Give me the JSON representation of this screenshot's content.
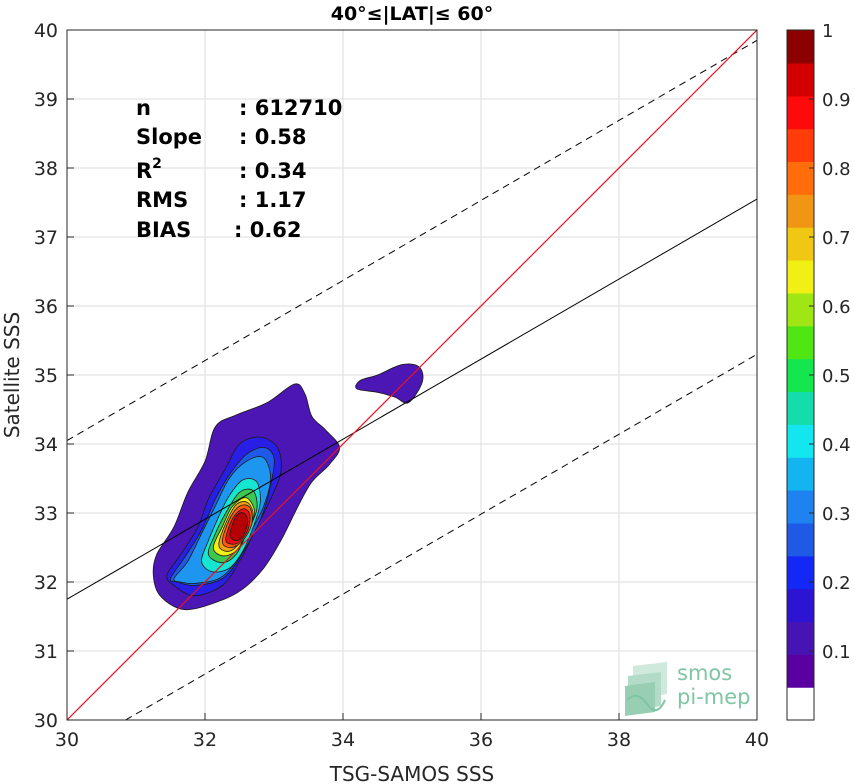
{
  "chart_data": {
    "type": "contour",
    "title": "40°≤|LAT|≤ 60°",
    "xlabel": "TSG-SAMOS SSS",
    "ylabel": "Satellite SSS",
    "xlim": [
      30,
      40
    ],
    "ylim": [
      30,
      40
    ],
    "xticks": [
      "30",
      "32",
      "34",
      "36",
      "38",
      "40"
    ],
    "yticks": [
      "30",
      "31",
      "32",
      "33",
      "34",
      "35",
      "36",
      "37",
      "38",
      "39",
      "40"
    ],
    "grid": true,
    "stats": [
      {
        "label": "n",
        "value": ": 612710"
      },
      {
        "label": "Slope",
        "value": ": 0.58"
      },
      {
        "label": "R",
        "sup": "2",
        "value": ": 0.34"
      },
      {
        "label": "RMS",
        "value": ": 1.17"
      },
      {
        "label": "BIAS",
        "value": ": 0.62"
      }
    ],
    "identity_line": {
      "color": "#e8141e",
      "x": [
        30,
        40
      ],
      "y": [
        30,
        40
      ]
    },
    "regression_line": {
      "x": [
        30,
        40
      ],
      "y": [
        31.75,
        37.55
      ]
    },
    "envelope_lines": [
      {
        "x": [
          30,
          40
        ],
        "y": [
          34.05,
          39.85
        ]
      },
      {
        "x": [
          30.85,
          40
        ],
        "y": [
          30,
          35.3
        ]
      }
    ],
    "contours": [
      {
        "level": 0.05,
        "color": "#4b16b4",
        "points": [
          [
            31.25,
            32.1
          ],
          [
            31.3,
            32.4
          ],
          [
            31.55,
            32.8
          ],
          [
            31.75,
            33.3
          ],
          [
            32.0,
            33.75
          ],
          [
            32.15,
            34.25
          ],
          [
            32.45,
            34.42
          ],
          [
            32.9,
            34.6
          ],
          [
            33.3,
            34.87
          ],
          [
            33.45,
            34.72
          ],
          [
            33.55,
            34.4
          ],
          [
            33.75,
            34.2
          ],
          [
            33.95,
            33.95
          ],
          [
            33.8,
            33.7
          ],
          [
            33.55,
            33.45
          ],
          [
            33.35,
            33.1
          ],
          [
            33.1,
            32.6
          ],
          [
            32.85,
            32.2
          ],
          [
            32.55,
            31.9
          ],
          [
            32.2,
            31.72
          ],
          [
            31.7,
            31.6
          ],
          [
            31.35,
            31.8
          ]
        ]
      },
      {
        "level": 0.05,
        "color": "#4b16b4",
        "points": [
          [
            34.2,
            34.8
          ],
          [
            34.25,
            34.92
          ],
          [
            34.5,
            35.0
          ],
          [
            34.85,
            35.15
          ],
          [
            35.1,
            35.12
          ],
          [
            35.15,
            34.9
          ],
          [
            34.95,
            34.6
          ],
          [
            34.75,
            34.68
          ],
          [
            34.5,
            34.75
          ]
        ]
      },
      {
        "level": 0.15,
        "color": "#281ee6",
        "points": [
          [
            31.45,
            32.1
          ],
          [
            31.65,
            32.4
          ],
          [
            31.9,
            32.8
          ],
          [
            32.05,
            33.2
          ],
          [
            32.3,
            33.65
          ],
          [
            32.5,
            34.0
          ],
          [
            32.8,
            34.1
          ],
          [
            33.05,
            33.95
          ],
          [
            33.1,
            33.6
          ],
          [
            32.95,
            33.2
          ],
          [
            32.75,
            32.8
          ],
          [
            32.5,
            32.3
          ],
          [
            32.25,
            31.95
          ],
          [
            31.85,
            31.8
          ],
          [
            31.55,
            31.95
          ]
        ]
      },
      {
        "level": 0.25,
        "color": "#1e5ae6",
        "points": [
          [
            31.5,
            32.05
          ],
          [
            31.7,
            32.35
          ],
          [
            31.95,
            32.75
          ],
          [
            32.15,
            33.2
          ],
          [
            32.35,
            33.55
          ],
          [
            32.6,
            33.85
          ],
          [
            32.85,
            33.95
          ],
          [
            33.0,
            33.8
          ],
          [
            32.95,
            33.4
          ],
          [
            32.8,
            32.9
          ],
          [
            32.5,
            32.35
          ],
          [
            32.25,
            32.05
          ],
          [
            31.85,
            31.95
          ],
          [
            31.6,
            32.0
          ]
        ]
      },
      {
        "level": 0.35,
        "color": "#1e96f0",
        "points": [
          [
            31.55,
            32.05
          ],
          [
            31.75,
            32.3
          ],
          [
            31.95,
            32.7
          ],
          [
            32.15,
            33.1
          ],
          [
            32.35,
            33.5
          ],
          [
            32.6,
            33.75
          ],
          [
            32.85,
            33.8
          ],
          [
            32.95,
            33.5
          ],
          [
            32.85,
            33.1
          ],
          [
            32.65,
            32.7
          ],
          [
            32.45,
            32.3
          ],
          [
            32.2,
            32.05
          ],
          [
            31.85,
            31.98
          ],
          [
            31.65,
            32.0
          ]
        ]
      },
      {
        "level": 0.45,
        "color": "#14e6d2",
        "points": [
          [
            31.95,
            32.3
          ],
          [
            32.05,
            32.6
          ],
          [
            32.2,
            32.95
          ],
          [
            32.35,
            33.25
          ],
          [
            32.55,
            33.48
          ],
          [
            32.75,
            33.45
          ],
          [
            32.8,
            33.15
          ],
          [
            32.7,
            32.8
          ],
          [
            32.55,
            32.45
          ],
          [
            32.35,
            32.2
          ],
          [
            32.1,
            32.15
          ]
        ]
      },
      {
        "level": 0.55,
        "color": "#3cc850",
        "points": [
          [
            32.05,
            32.4
          ],
          [
            32.15,
            32.7
          ],
          [
            32.3,
            33.0
          ],
          [
            32.5,
            33.3
          ],
          [
            32.7,
            33.32
          ],
          [
            32.75,
            33.05
          ],
          [
            32.6,
            32.7
          ],
          [
            32.45,
            32.4
          ],
          [
            32.25,
            32.28
          ]
        ]
      },
      {
        "level": 0.65,
        "color": "#f0f014",
        "points": [
          [
            32.12,
            32.5
          ],
          [
            32.25,
            32.8
          ],
          [
            32.4,
            33.1
          ],
          [
            32.6,
            33.22
          ],
          [
            32.72,
            33.0
          ],
          [
            32.6,
            32.7
          ],
          [
            32.45,
            32.45
          ],
          [
            32.25,
            32.38
          ]
        ]
      },
      {
        "level": 0.75,
        "color": "#f0a014",
        "points": [
          [
            32.2,
            32.55
          ],
          [
            32.3,
            32.85
          ],
          [
            32.45,
            33.12
          ],
          [
            32.62,
            33.15
          ],
          [
            32.7,
            32.95
          ],
          [
            32.58,
            32.68
          ],
          [
            32.42,
            32.48
          ],
          [
            32.28,
            32.45
          ]
        ]
      },
      {
        "level": 0.85,
        "color": "#ff5a0a",
        "points": [
          [
            32.25,
            32.58
          ],
          [
            32.35,
            32.9
          ],
          [
            32.5,
            33.1
          ],
          [
            32.65,
            33.08
          ],
          [
            32.68,
            32.85
          ],
          [
            32.55,
            32.6
          ],
          [
            32.38,
            32.5
          ]
        ]
      },
      {
        "level": 0.92,
        "color": "#e80f14",
        "points": [
          [
            32.3,
            32.62
          ],
          [
            32.4,
            32.92
          ],
          [
            32.55,
            33.06
          ],
          [
            32.65,
            32.98
          ],
          [
            32.62,
            32.75
          ],
          [
            32.5,
            32.58
          ],
          [
            32.38,
            32.55
          ]
        ]
      },
      {
        "level": 0.98,
        "color": "#b40000",
        "points": [
          [
            32.36,
            32.68
          ],
          [
            32.45,
            32.95
          ],
          [
            32.56,
            33.0
          ],
          [
            32.62,
            32.88
          ],
          [
            32.56,
            32.68
          ],
          [
            32.46,
            32.6
          ]
        ]
      }
    ],
    "colorbar": {
      "range": [
        0,
        1
      ],
      "ticks": [
        "0.1",
        "0.2",
        "0.3",
        "0.4",
        "0.5",
        "0.6",
        "0.7",
        "0.8",
        "0.9",
        "1"
      ],
      "colors": [
        "#ffffff",
        "#5a00a0",
        "#4614b4",
        "#2d14d2",
        "#1428f5",
        "#1e5ae6",
        "#1e82f0",
        "#14b4f0",
        "#14e6f0",
        "#14dcaa",
        "#14e650",
        "#50e614",
        "#a0e614",
        "#f0f014",
        "#f0c814",
        "#f09614",
        "#ff6e0a",
        "#ff3c0a",
        "#ff0a0a",
        "#d20000",
        "#8c0000"
      ]
    }
  },
  "logo": {
    "line1": "smos",
    "line2": "pi-mep"
  }
}
